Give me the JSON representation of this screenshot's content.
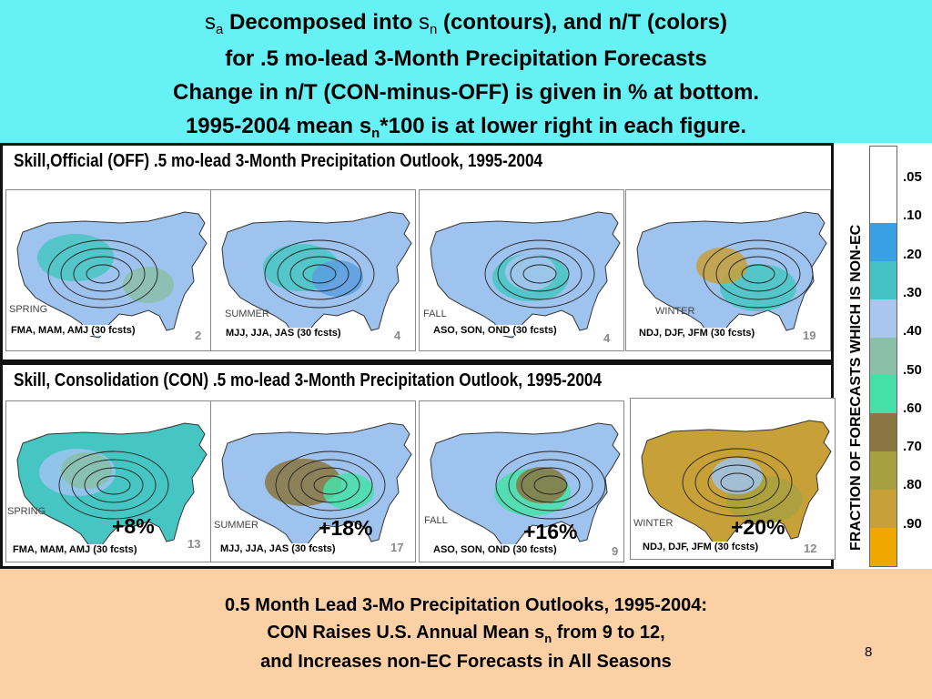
{
  "title": {
    "line1_a": "s",
    "line1_a_sub": "a",
    "line1_b": " Decomposed into ",
    "line1_c": "s",
    "line1_c_sub": "n",
    "line1_d": " (contours), and n/T (colors)",
    "line2": "for .5 mo-lead 3-Month Precipitation Forecasts",
    "line3": "Change in n/T (CON-minus-OFF) is given in % at bottom.",
    "line4_a": "1995-2004 mean s",
    "line4_sub": "n",
    "line4_b": "*100 is at lower right in each figure."
  },
  "off_panel": {
    "title": "Skill,Official (OFF) .5 mo-lead 3-Month Precipitation Outlook, 1995-2004",
    "maps": [
      {
        "season": "SPRING",
        "fcsts": "FMA, MAM, AMJ (30 fcsts)",
        "score": "2"
      },
      {
        "season": "SUMMER",
        "fcsts": "MJJ, JJA, JAS (30 fcsts)",
        "score": "4"
      },
      {
        "season": "FALL",
        "fcsts": "ASO, SON, OND (30 fcsts)",
        "score": "4"
      },
      {
        "season": "WINTER",
        "fcsts": "NDJ, DJF, JFM (30 fcsts)",
        "score": "19"
      }
    ]
  },
  "con_panel": {
    "title": "Skill, Consolidation (CON) .5 mo-lead 3-Month Precipitation Outlook, 1995-2004",
    "maps": [
      {
        "season": "SPRING",
        "fcsts": "FMA, MAM, AMJ (30 fcsts)",
        "score": "13",
        "change": "+8%"
      },
      {
        "season": "SUMMER",
        "fcsts": "MJJ, JJA, JAS (30 fcsts)",
        "score": "17",
        "change": "+18%"
      },
      {
        "season": "FALL",
        "fcsts": "ASO, SON, OND (30 fcsts)",
        "score": "9",
        "change": "+16%"
      },
      {
        "season": "WINTER",
        "fcsts": "NDJ, DJF, JFM (30 fcsts)",
        "score": "12",
        "change": "+20%"
      }
    ]
  },
  "legend": {
    "label": "FRACTION OF FORECASTS WHICH IS NON-EC",
    "ticks": [
      ".05",
      ".10",
      ".20",
      ".30",
      ".40",
      ".50",
      ".60",
      ".70",
      ".80",
      ".90"
    ],
    "colors": [
      "#ffffff",
      "#3aa0e6",
      "#44c2c4",
      "#a8c6f0",
      "#8ac0a8",
      "#44e0a8",
      "#8a7640",
      "#a8a040",
      "#c8a038",
      "#f0a800"
    ]
  },
  "conclusion": {
    "line1": "0.5 Month Lead 3-Mo Precipitation Outlooks, 1995-2004:",
    "line2_a": "CON Raises U.S. Annual Mean s",
    "line2_sub": "n",
    "line2_b": " from 9 to 12,",
    "line3": "and Increases non-EC Forecasts in All Seasons"
  },
  "slide_number": "8",
  "colors": {
    "top_background": "#66f2f5",
    "bottom_background": "#fbd0a4"
  }
}
